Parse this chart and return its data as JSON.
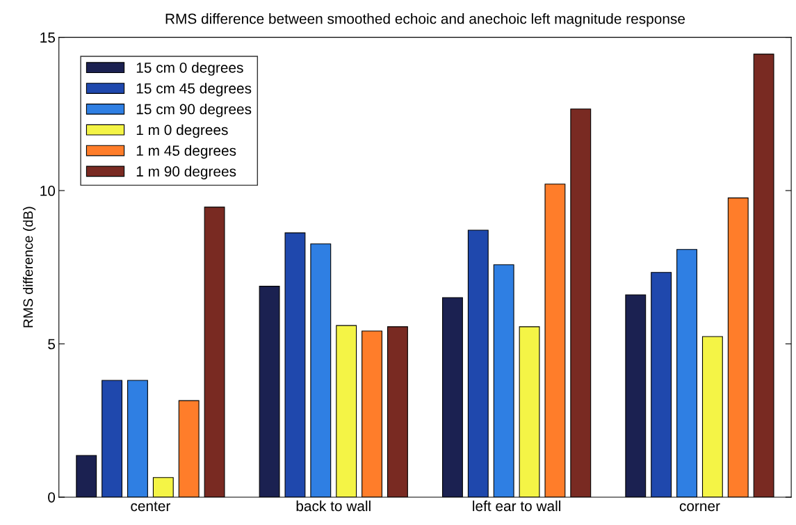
{
  "chart_data": {
    "type": "bar",
    "title": "RMS difference between smoothed echoic and anechoic left magnitude response",
    "ylabel": "RMS difference (dB)",
    "categories": [
      "center",
      "back to wall",
      "left ear to wall",
      "corner"
    ],
    "series": [
      {
        "name": "15 cm 0 degrees",
        "color": "#1b2151",
        "values": [
          1.36,
          6.88,
          6.51,
          6.6
        ]
      },
      {
        "name": "15 cm 45 degrees",
        "color": "#1f48ad",
        "values": [
          3.81,
          8.62,
          8.71,
          7.33
        ]
      },
      {
        "name": "15 cm 90 degrees",
        "color": "#2f7fe3",
        "values": [
          3.81,
          8.26,
          7.58,
          8.08
        ]
      },
      {
        "name": "1 m 0 degrees",
        "color": "#f4f446",
        "values": [
          0.64,
          5.6,
          5.56,
          5.24
        ]
      },
      {
        "name": "1 m 45 degrees",
        "color": "#ff7d2a",
        "values": [
          3.15,
          5.42,
          10.21,
          9.76
        ]
      },
      {
        "name": "1 m 90 degrees",
        "color": "#792a22",
        "values": [
          9.46,
          5.56,
          12.66,
          14.45
        ]
      }
    ],
    "ylim": [
      0,
      15
    ],
    "yticks": [
      0,
      5,
      10,
      15
    ],
    "grid": false,
    "legend": "top left"
  }
}
